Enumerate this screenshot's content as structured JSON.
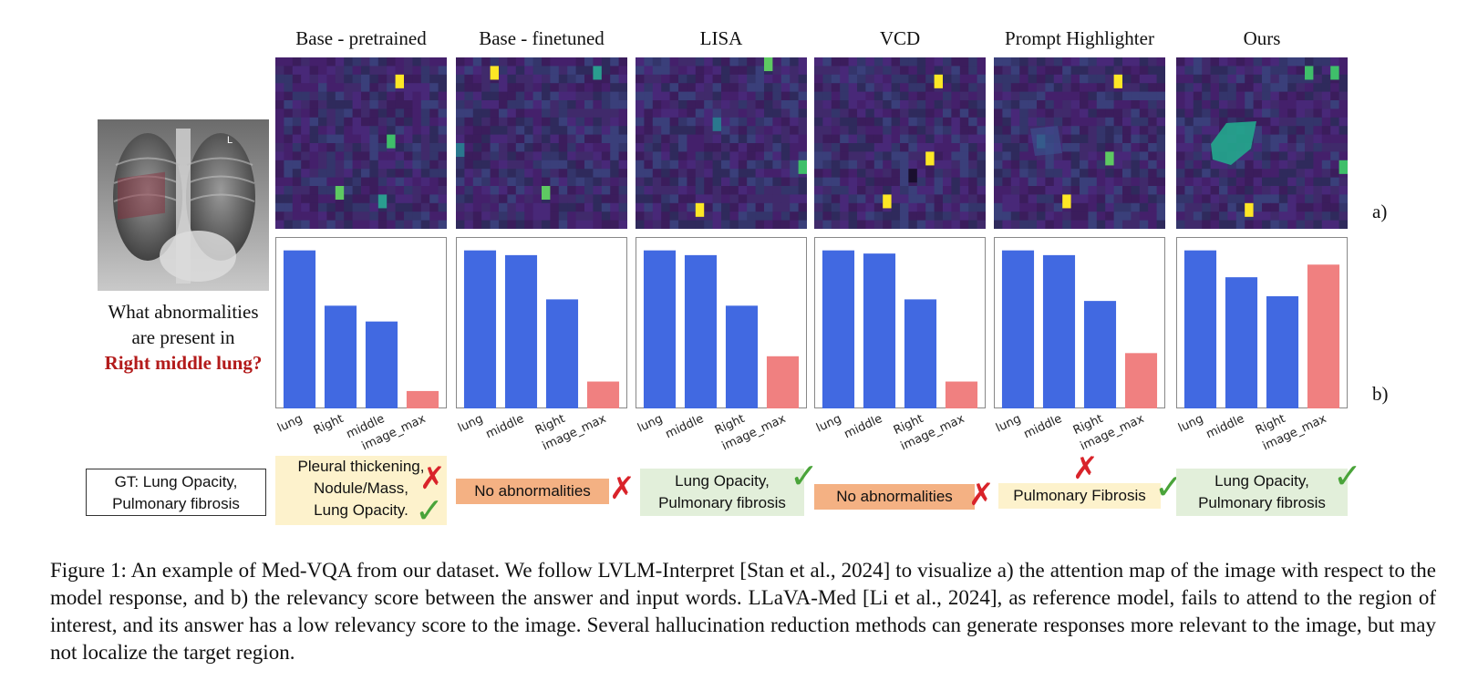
{
  "figure": {
    "columns": [
      {
        "title": "Base - pretrained"
      },
      {
        "title": "Base - finetuned"
      },
      {
        "title": "LISA"
      },
      {
        "title": "VCD"
      },
      {
        "title": "Prompt Highlighter"
      },
      {
        "title": "Ours"
      }
    ],
    "row_labels": {
      "a": "a)",
      "b": "b)"
    },
    "question": {
      "line1": "What abnormalities",
      "line2": "are present in",
      "highlight": "Right middle lung?"
    },
    "xray_marker": "L",
    "ground_truth": {
      "line1": "GT: Lung Opacity,",
      "line2": "Pulmonary fibrosis"
    },
    "answers": [
      {
        "lines": [
          "Pleural thickening,",
          "Nodule/Mass,",
          "Lung Opacity."
        ],
        "bg": "#fdf2cc",
        "marks": [
          "cross",
          "check"
        ]
      },
      {
        "lines": [
          "No abnormalities"
        ],
        "bg": "#f4b183",
        "marks": [
          "cross"
        ]
      },
      {
        "lines": [
          "Lung Opacity,",
          "Pulmonary fibrosis"
        ],
        "bg": "#e2efda",
        "marks": [
          "check"
        ]
      },
      {
        "lines": [
          "No abnormalities"
        ],
        "bg": "#f4b183",
        "marks": [
          "cross"
        ]
      },
      {
        "lines": [
          "Pulmonary Fibrosis"
        ],
        "bg": "#fdf2cc",
        "marks": [
          "cross",
          "check"
        ]
      },
      {
        "lines": [
          "Lung Opacity,",
          "Pulmonary fibrosis"
        ],
        "bg": "#e2efda",
        "marks": [
          "check"
        ]
      }
    ],
    "mark_glyphs": {
      "cross": "✗",
      "check": "✓"
    },
    "colors": {
      "token_bar": "#4169e1",
      "image_bar": "#f08080",
      "heat_base": "#3b1d5c",
      "heat_high": "#fde725"
    },
    "caption": "Figure 1: An example of Med-VQA from our dataset. We follow LVLM-Interpret [Stan et al., 2024] to visualize a) the attention map of the image with respect to the model response, and b) the relevancy score between the answer and input words. LLaVA-Med [Li et al., 2024], as reference model, fails to attend to the region of interest, and its answer has a low relevancy score to the image. Several hallucination reduction methods can generate responses more relevant to the image, but may not localize the target region."
  },
  "chart_data": [
    {
      "type": "bar",
      "title": "Base - pretrained",
      "categories": [
        "lung",
        "Right",
        "middle",
        "image_max"
      ],
      "values": [
        1.0,
        0.65,
        0.55,
        0.11
      ],
      "ylim": [
        0,
        1.05
      ]
    },
    {
      "type": "bar",
      "title": "Base - finetuned",
      "categories": [
        "lung",
        "middle",
        "Right",
        "image_max"
      ],
      "values": [
        1.0,
        0.97,
        0.69,
        0.17
      ],
      "ylim": [
        0,
        1.05
      ]
    },
    {
      "type": "bar",
      "title": "LISA",
      "categories": [
        "lung",
        "middle",
        "Right",
        "image_max"
      ],
      "values": [
        1.0,
        0.97,
        0.65,
        0.33
      ],
      "ylim": [
        0,
        1.05
      ]
    },
    {
      "type": "bar",
      "title": "VCD",
      "categories": [
        "lung",
        "middle",
        "Right",
        "image_max"
      ],
      "values": [
        1.0,
        0.98,
        0.69,
        0.17
      ],
      "ylim": [
        0,
        1.05
      ]
    },
    {
      "type": "bar",
      "title": "Prompt Highlighter",
      "categories": [
        "lung",
        "middle",
        "Right",
        "image_max"
      ],
      "values": [
        1.0,
        0.97,
        0.68,
        0.35
      ],
      "ylim": [
        0,
        1.05
      ]
    },
    {
      "type": "bar",
      "title": "Ours",
      "categories": [
        "lung",
        "middle",
        "Right",
        "image_max"
      ],
      "values": [
        1.0,
        0.83,
        0.71,
        0.91
      ],
      "ylim": [
        0,
        1.05
      ]
    }
  ]
}
